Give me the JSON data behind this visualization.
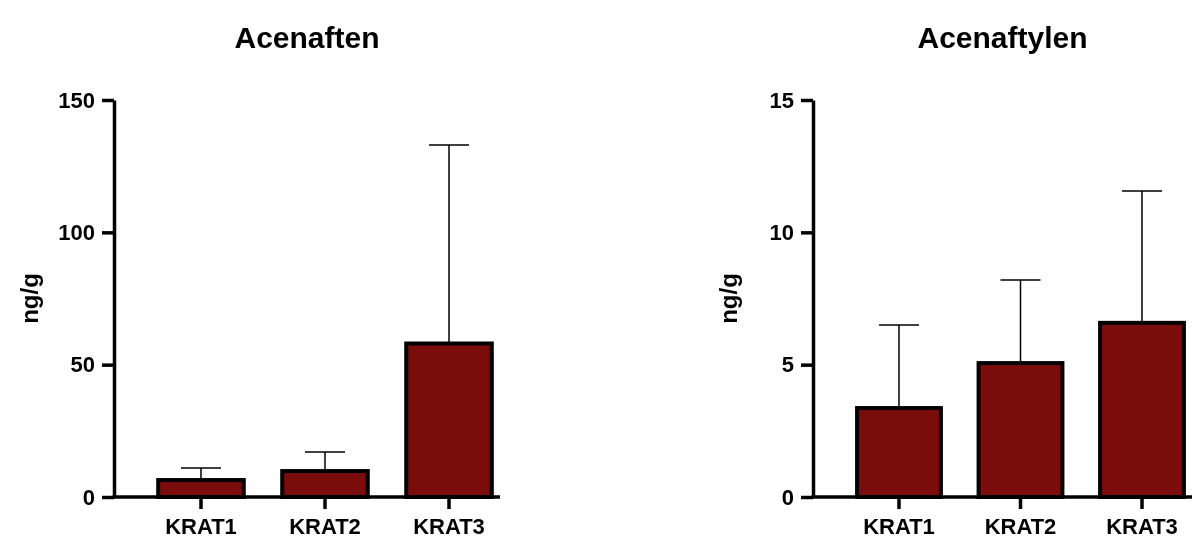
{
  "chart_data": [
    {
      "type": "bar",
      "title": "Acenaften",
      "ylabel": "ng/g",
      "categories": [
        "KRAT1",
        "KRAT2",
        "KRAT3"
      ],
      "values": [
        6.4,
        9.8,
        58
      ],
      "errors": [
        [
          6.4,
          11
        ],
        [
          9.8,
          17
        ],
        [
          58,
          133
        ]
      ],
      "colors": [
        "#7a0c0c",
        "#7a0c0c",
        "#7a0c0c"
      ],
      "ylim": [
        0,
        150
      ],
      "yticks": [
        0,
        50,
        100,
        150
      ],
      "grid": false,
      "legend": false
    },
    {
      "type": "bar",
      "title": "Acenaftylen",
      "ylabel": "ng/g",
      "categories": [
        "KRAT1",
        "KRAT2",
        "KRAT3"
      ],
      "values": [
        3.36,
        5.06,
        6.58
      ],
      "errors": [
        [
          3.36,
          6.5
        ],
        [
          5.06,
          8.2
        ],
        [
          6.58,
          11.56
        ]
      ],
      "colors": [
        "#7a0c0c",
        "#7a0c0c",
        "#7a0c0c"
      ],
      "ylim": [
        0,
        15
      ],
      "yticks": [
        0,
        5,
        10,
        15
      ],
      "grid": false,
      "legend": false
    }
  ]
}
